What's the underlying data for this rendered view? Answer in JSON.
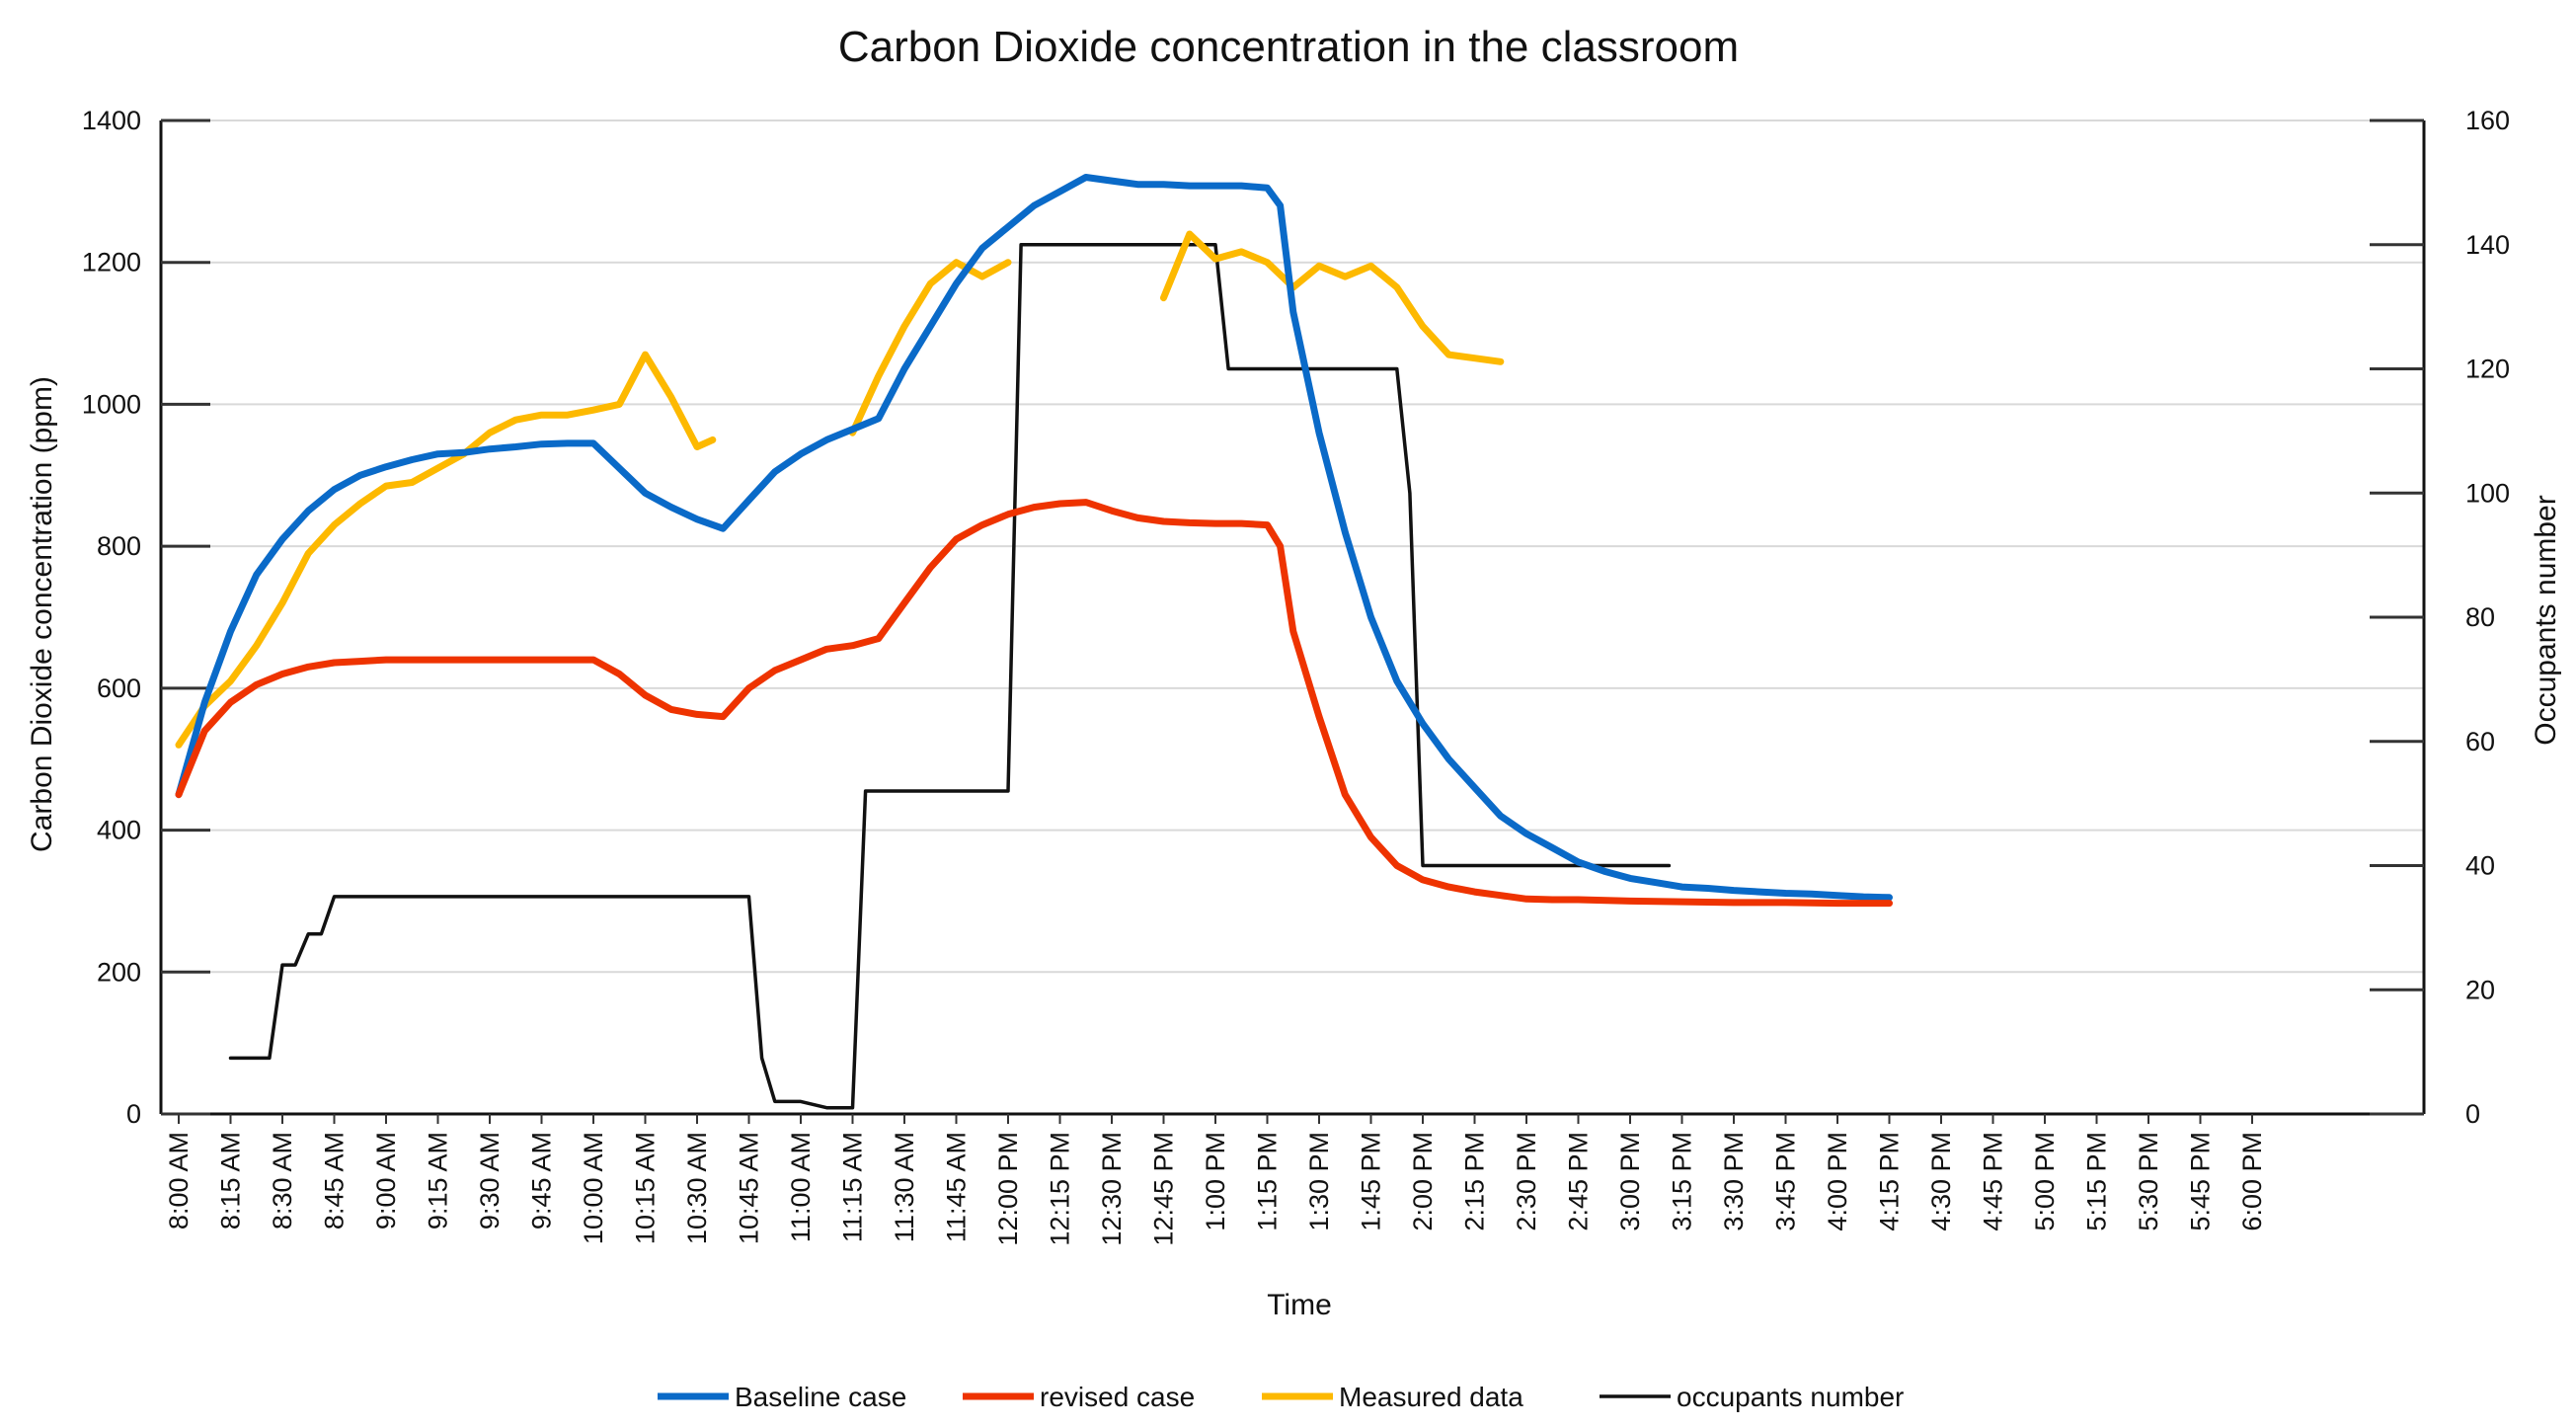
{
  "chart_data": {
    "type": "line",
    "title": "Carbon Dioxide concentration in the classroom",
    "xlabel": "Time",
    "ylabel": "Carbon Dioxide concentration (ppm)",
    "y2label": "Occupants number",
    "ylim": [
      0,
      1400
    ],
    "y2lim": [
      0,
      160
    ],
    "yticks": [
      0,
      200,
      400,
      600,
      800,
      1000,
      1200,
      1400
    ],
    "y2ticks": [
      0,
      20,
      40,
      60,
      80,
      100,
      120,
      140,
      160
    ],
    "categories": [
      "8:00 AM",
      "8:15 AM",
      "8:30 AM",
      "8:45 AM",
      "9:00 AM",
      "9:15 AM",
      "9:30 AM",
      "9:45 AM",
      "10:00 AM",
      "10:15 AM",
      "10:30 AM",
      "10:45 AM",
      "11:00 AM",
      "11:15 AM",
      "11:30 AM",
      "11:45 AM",
      "12:00 PM",
      "12:15 PM",
      "12:30 PM",
      "12:45 PM",
      "1:00 PM",
      "1:15 PM",
      "1:30 PM",
      "1:45 PM",
      "2:00 PM",
      "2:15 PM",
      "2:30 PM",
      "2:45 PM",
      "3:00 PM",
      "3:15 PM",
      "3:30 PM",
      "3:45 PM",
      "4:00 PM",
      "4:15 PM",
      "4:30 PM",
      "4:45 PM",
      "5:00 PM",
      "5:15 PM",
      "5:30 PM",
      "5:45 PM",
      "6:00 PM"
    ],
    "legend_position": "bottom",
    "series": [
      {
        "name": "Baseline case",
        "axis": "left",
        "color": "#0a6ac8",
        "points": [
          [
            0,
            450
          ],
          [
            0.5,
            580
          ],
          [
            1,
            680
          ],
          [
            1.5,
            760
          ],
          [
            2,
            810
          ],
          [
            2.5,
            850
          ],
          [
            3,
            880
          ],
          [
            3.5,
            900
          ],
          [
            4,
            912
          ],
          [
            4.5,
            922
          ],
          [
            5,
            930
          ],
          [
            5.5,
            932
          ],
          [
            6,
            937
          ],
          [
            6.5,
            940
          ],
          [
            7,
            944
          ],
          [
            7.5,
            945
          ],
          [
            8,
            945
          ],
          [
            8.5,
            910
          ],
          [
            9,
            875
          ],
          [
            9.5,
            855
          ],
          [
            10,
            838
          ],
          [
            10.5,
            825
          ],
          [
            11,
            865
          ],
          [
            11.5,
            905
          ],
          [
            12,
            930
          ],
          [
            12.5,
            950
          ],
          [
            13,
            965
          ],
          [
            13.5,
            980
          ],
          [
            14,
            1050
          ],
          [
            14.5,
            1110
          ],
          [
            15,
            1170
          ],
          [
            15.5,
            1220
          ],
          [
            16,
            1250
          ],
          [
            16.5,
            1280
          ],
          [
            17,
            1300
          ],
          [
            17.5,
            1320
          ],
          [
            18,
            1315
          ],
          [
            18.5,
            1310
          ],
          [
            19,
            1310
          ],
          [
            19.5,
            1308
          ],
          [
            20,
            1308
          ],
          [
            20.5,
            1308
          ],
          [
            21,
            1305
          ],
          [
            21.25,
            1280
          ],
          [
            21.5,
            1130
          ],
          [
            22,
            960
          ],
          [
            22.5,
            820
          ],
          [
            23,
            700
          ],
          [
            23.5,
            610
          ],
          [
            24,
            550
          ],
          [
            24.5,
            500
          ],
          [
            25,
            460
          ],
          [
            25.5,
            420
          ],
          [
            26,
            395
          ],
          [
            26.5,
            375
          ],
          [
            27,
            355
          ],
          [
            27.5,
            342
          ],
          [
            28,
            332
          ],
          [
            28.5,
            326
          ],
          [
            29,
            320
          ],
          [
            29.5,
            318
          ],
          [
            30,
            315
          ],
          [
            30.5,
            313
          ],
          [
            31,
            311
          ],
          [
            31.5,
            310
          ],
          [
            32,
            308
          ],
          [
            32.5,
            306
          ],
          [
            33,
            305
          ]
        ]
      },
      {
        "name": "revised case",
        "axis": "left",
        "color": "#ee3300",
        "points": [
          [
            0,
            450
          ],
          [
            0.5,
            540
          ],
          [
            1,
            580
          ],
          [
            1.5,
            605
          ],
          [
            2,
            620
          ],
          [
            2.5,
            630
          ],
          [
            3,
            636
          ],
          [
            3.5,
            638
          ],
          [
            4,
            640
          ],
          [
            5,
            640
          ],
          [
            6,
            640
          ],
          [
            7,
            640
          ],
          [
            8,
            640
          ],
          [
            8.5,
            620
          ],
          [
            9,
            590
          ],
          [
            9.5,
            570
          ],
          [
            10,
            563
          ],
          [
            10.5,
            560
          ],
          [
            11,
            600
          ],
          [
            11.5,
            625
          ],
          [
            12,
            640
          ],
          [
            12.5,
            655
          ],
          [
            13,
            660
          ],
          [
            13.5,
            670
          ],
          [
            14,
            720
          ],
          [
            14.5,
            770
          ],
          [
            15,
            810
          ],
          [
            15.5,
            830
          ],
          [
            16,
            845
          ],
          [
            16.5,
            855
          ],
          [
            17,
            860
          ],
          [
            17.5,
            862
          ],
          [
            18,
            850
          ],
          [
            18.5,
            840
          ],
          [
            19,
            835
          ],
          [
            19.5,
            833
          ],
          [
            20,
            832
          ],
          [
            20.5,
            832
          ],
          [
            21,
            830
          ],
          [
            21.25,
            800
          ],
          [
            21.5,
            680
          ],
          [
            22,
            560
          ],
          [
            22.5,
            450
          ],
          [
            23,
            390
          ],
          [
            23.5,
            350
          ],
          [
            24,
            330
          ],
          [
            24.5,
            320
          ],
          [
            25,
            313
          ],
          [
            25.5,
            308
          ],
          [
            26,
            303
          ],
          [
            26.5,
            302
          ],
          [
            27,
            302
          ],
          [
            28,
            300
          ],
          [
            29,
            299
          ],
          [
            30,
            298
          ],
          [
            31,
            298
          ],
          [
            32,
            297
          ],
          [
            33,
            297
          ]
        ]
      },
      {
        "name": "Measured data",
        "axis": "left",
        "color": "#fdb900",
        "segments": [
          [
            [
              0,
              520
            ],
            [
              0.5,
              575
            ],
            [
              1,
              610
            ],
            [
              1.5,
              660
            ],
            [
              2,
              720
            ],
            [
              2.5,
              790
            ],
            [
              3,
              830
            ],
            [
              3.5,
              860
            ],
            [
              4,
              885
            ],
            [
              4.5,
              890
            ],
            [
              5,
              910
            ],
            [
              5.5,
              930
            ],
            [
              6,
              960
            ],
            [
              6.5,
              978
            ],
            [
              7,
              985
            ],
            [
              7.5,
              985
            ],
            [
              8,
              992
            ],
            [
              8.5,
              1000
            ],
            [
              9,
              1070
            ],
            [
              9.5,
              1010
            ],
            [
              10,
              940
            ],
            [
              10.3,
              950
            ]
          ],
          [
            [
              13,
              960
            ],
            [
              13.5,
              1040
            ],
            [
              14,
              1110
            ],
            [
              14.5,
              1170
            ],
            [
              15,
              1200
            ],
            [
              15.5,
              1180
            ],
            [
              16,
              1200
            ]
          ],
          [
            [
              19,
              1150
            ],
            [
              19.5,
              1240
            ],
            [
              20,
              1205
            ],
            [
              20.5,
              1215
            ],
            [
              21,
              1200
            ],
            [
              21.5,
              1165
            ],
            [
              22,
              1195
            ],
            [
              22.5,
              1180
            ],
            [
              23,
              1195
            ],
            [
              23.5,
              1165
            ],
            [
              24,
              1110
            ],
            [
              24.5,
              1070
            ],
            [
              25,
              1065
            ],
            [
              25.5,
              1060
            ]
          ]
        ]
      },
      {
        "name": "occupants number",
        "axis": "right",
        "color": "#111111",
        "points": [
          [
            1,
            9
          ],
          [
            1.75,
            9
          ],
          [
            2,
            24
          ],
          [
            2.25,
            24
          ],
          [
            2.5,
            29
          ],
          [
            2.75,
            29
          ],
          [
            3,
            35
          ],
          [
            4,
            35
          ],
          [
            5,
            35
          ],
          [
            6,
            35
          ],
          [
            7,
            35
          ],
          [
            8,
            35
          ],
          [
            9,
            35
          ],
          [
            10,
            35
          ],
          [
            11,
            35
          ],
          [
            11.25,
            9
          ],
          [
            11.5,
            2
          ],
          [
            12,
            2
          ],
          [
            12.5,
            1
          ],
          [
            13,
            1
          ],
          [
            13.25,
            52
          ],
          [
            14,
            52
          ],
          [
            15,
            52
          ],
          [
            16,
            52
          ],
          [
            16.25,
            140
          ],
          [
            17,
            140
          ],
          [
            18,
            140
          ],
          [
            19,
            140
          ],
          [
            20,
            140
          ],
          [
            20.25,
            120
          ],
          [
            21,
            120
          ],
          [
            22,
            120
          ],
          [
            23,
            120
          ],
          [
            23.5,
            120
          ],
          [
            23.75,
            100
          ],
          [
            24,
            40
          ],
          [
            25,
            40
          ],
          [
            26,
            40
          ],
          [
            27,
            40
          ],
          [
            28,
            40
          ],
          [
            28.75,
            40
          ]
        ]
      }
    ]
  }
}
